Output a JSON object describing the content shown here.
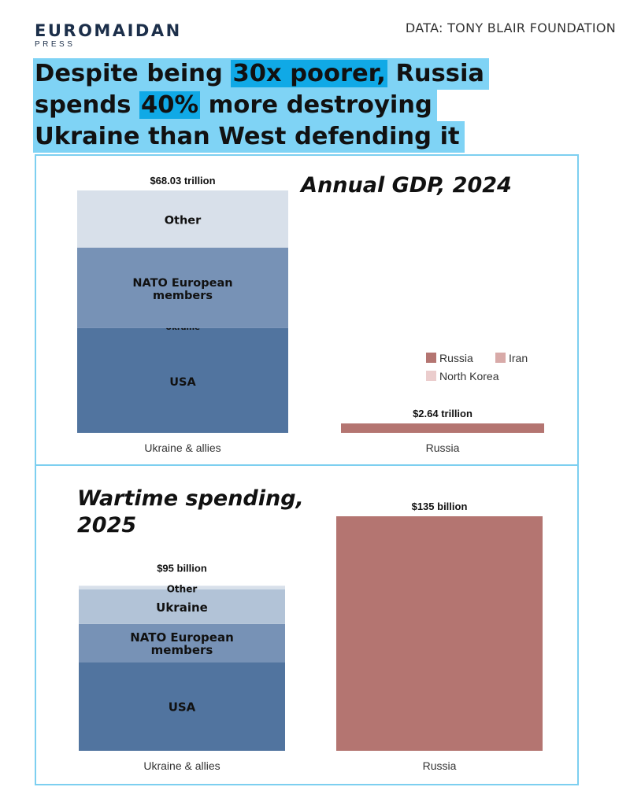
{
  "brand": {
    "name": "EUROMAIDAN",
    "sub": "PRESS"
  },
  "source": "DATA: TONY BLAIR FOUNDATION",
  "headline": {
    "line1_pre": "Despite being ",
    "line1_hl": "30x poorer,",
    "line1_post": " Russia",
    "line2_pre": "spends ",
    "line2_hl": "40%",
    "line2_post": " more destroying",
    "line3": "Ukraine than West defending it"
  },
  "colors": {
    "usa": "#51749f",
    "nato": "#7792b6",
    "ukraine": "#b2c3d7",
    "other": "#d8e0ea",
    "russia": "#b47571",
    "iran": "#d8aaa8",
    "north_korea": "#ebcdcd",
    "highlight": "#7fd3f5",
    "highlight_strong": "#10a9e6",
    "panel_border": "#7dcff0"
  },
  "chart_data": [
    {
      "type": "bar",
      "title": "Annual GDP, 2024",
      "categories": [
        "Ukraine & allies",
        "Russia"
      ],
      "unit": "trillion USD",
      "ylim": [
        0,
        68.03
      ],
      "totals": [
        {
          "category": "Ukraine & allies",
          "value": 68.03,
          "label": "$68.03 trillion"
        },
        {
          "category": "Russia",
          "value": 2.64,
          "label": "$2.64 trillion"
        }
      ],
      "series": [
        {
          "name": "USA",
          "color": "#51749f",
          "values": [
            29.2,
            0
          ]
        },
        {
          "name": "Ukraine",
          "color": "#51749f",
          "values": [
            0.19,
            0
          ]
        },
        {
          "name": "NATO European members",
          "color": "#7792b6",
          "values": [
            22.6,
            0
          ]
        },
        {
          "name": "Other",
          "color": "#d8e0ea",
          "values": [
            16.04,
            0
          ]
        },
        {
          "name": "Russia",
          "color": "#b47571",
          "values": [
            0,
            2.64
          ]
        }
      ],
      "legend": {
        "placement": "right",
        "entries": [
          {
            "name": "Russia",
            "color": "#b47571"
          },
          {
            "name": "Iran",
            "color": "#d8aaa8"
          },
          {
            "name": "North Korea",
            "color": "#ebcdcd"
          }
        ]
      },
      "grid": false
    },
    {
      "type": "bar",
      "title_lines": [
        "Wartime spending,",
        "2025"
      ],
      "categories": [
        "Ukraine & allies",
        "Russia"
      ],
      "unit": "billion USD",
      "ylim": [
        0,
        135
      ],
      "totals": [
        {
          "category": "Ukraine & allies",
          "value": 95,
          "label": "$95 billion"
        },
        {
          "category": "Russia",
          "value": 135,
          "label": "$135 billion"
        }
      ],
      "series": [
        {
          "name": "USA",
          "color": "#51749f",
          "values": [
            51,
            0
          ]
        },
        {
          "name": "NATO European members",
          "color": "#7792b6",
          "values": [
            22,
            0
          ]
        },
        {
          "name": "Ukraine",
          "color": "#b2c3d7",
          "values": [
            20,
            0
          ]
        },
        {
          "name": "Other",
          "color": "#d8e0ea",
          "values": [
            2,
            0
          ]
        },
        {
          "name": "Russia",
          "color": "#b47571",
          "values": [
            0,
            135
          ]
        }
      ],
      "grid": false
    }
  ]
}
